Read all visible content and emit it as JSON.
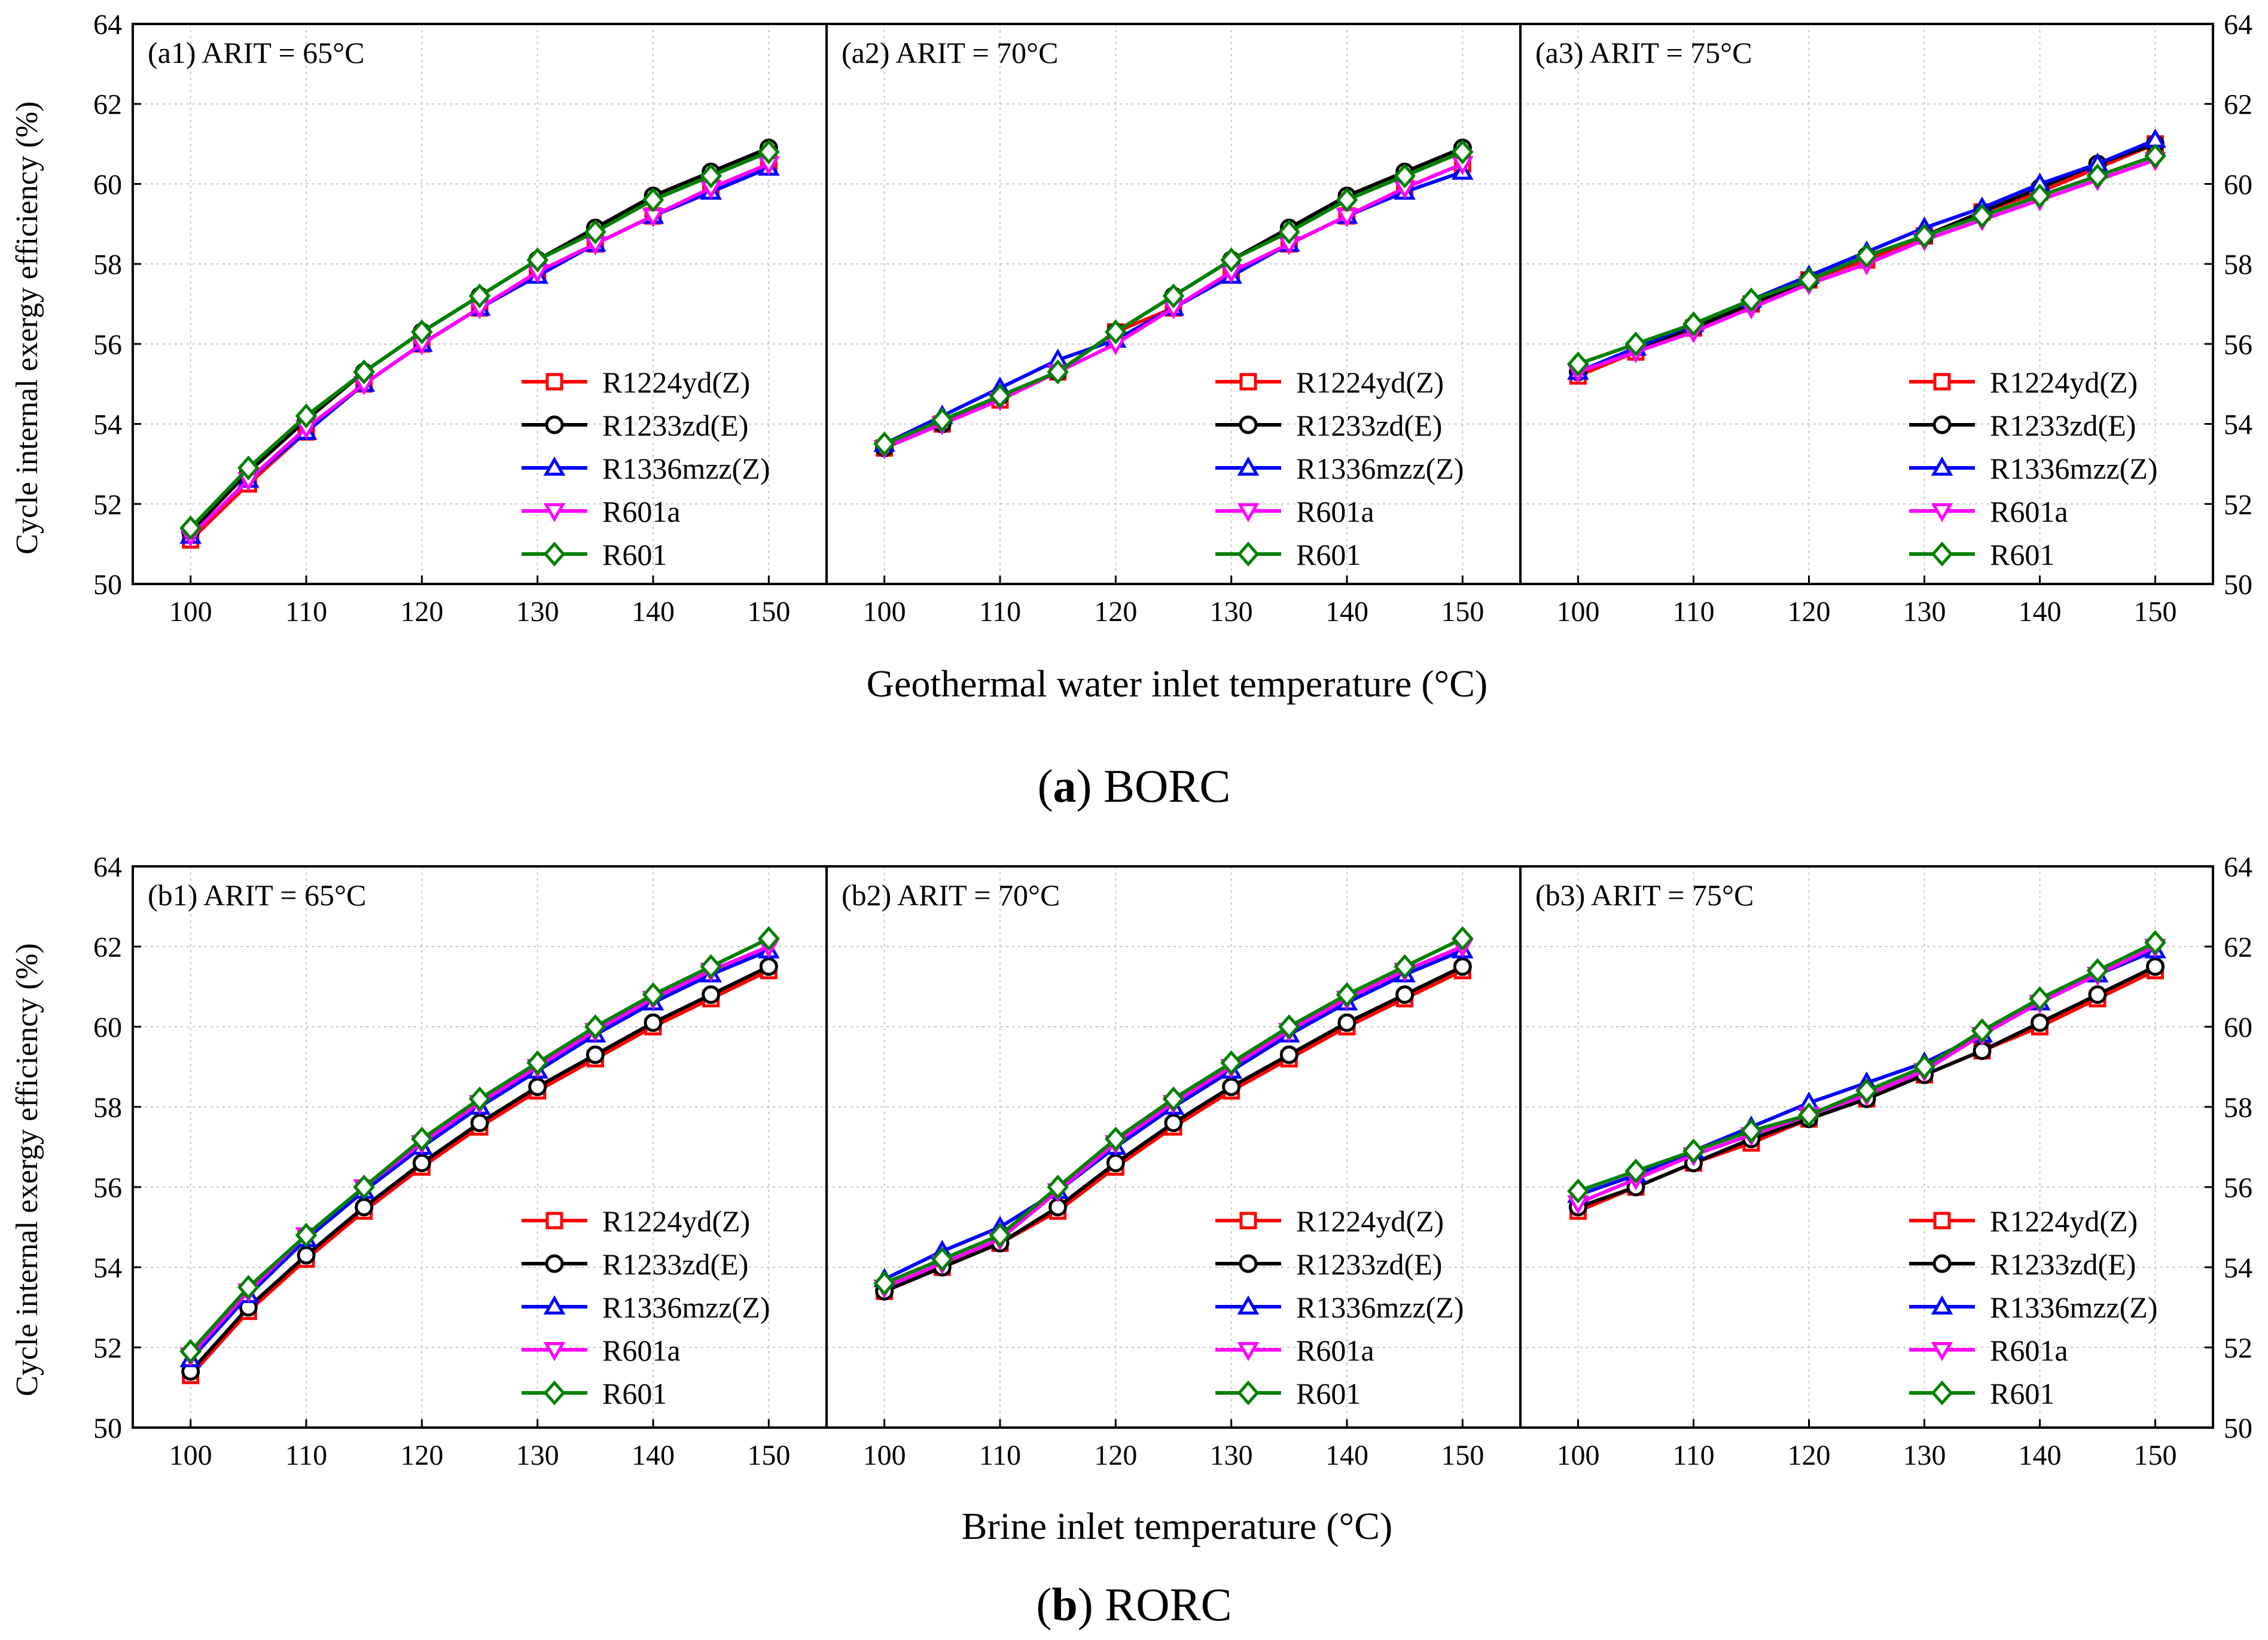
{
  "y_axis_label": "Cycle internal exergy efficiency (%)",
  "series_style": [
    {
      "name": "R1224yd(Z)",
      "color": "#ff0000",
      "marker": "square"
    },
    {
      "name": "R1233zd(E)",
      "color": "#000000",
      "marker": "circle"
    },
    {
      "name": "R1336mzz(Z)",
      "color": "#0000ff",
      "marker": "triangle-up"
    },
    {
      "name": "R601a",
      "color": "#ff00ff",
      "marker": "triangle-down"
    },
    {
      "name": "R601",
      "color": "#008000",
      "marker": "diamond"
    }
  ],
  "rows": [
    {
      "xlabel": "Geothermal water inlet temperature (°C)",
      "caption_letter": "a",
      "caption_rest": " BORC"
    },
    {
      "xlabel": "Brine inlet temperature (°C)",
      "caption_letter": "b",
      "caption_rest": " RORC"
    }
  ],
  "chart_data": [
    {
      "type": "line",
      "title": "(a1) ARIT = 65°C",
      "xlabel": "Geothermal water inlet temperature (°C)",
      "ylabel": "Cycle internal exergy efficiency (%)",
      "xlim": [
        95,
        155
      ],
      "ylim": [
        50,
        64
      ],
      "xticks": [
        100,
        110,
        120,
        130,
        140,
        150
      ],
      "yticks": [
        50,
        52,
        54,
        56,
        58,
        60,
        62,
        64
      ],
      "x": [
        100,
        105,
        110,
        115,
        120,
        125,
        130,
        135,
        140,
        145,
        150
      ],
      "series": [
        {
          "name": "R1224yd(Z)",
          "values": [
            51.1,
            52.5,
            53.8,
            55.0,
            56.0,
            56.9,
            57.8,
            58.5,
            59.2,
            59.9,
            60.5
          ]
        },
        {
          "name": "R1233zd(E)",
          "values": [
            51.3,
            52.8,
            54.1,
            55.3,
            56.3,
            57.2,
            58.1,
            58.9,
            59.7,
            60.3,
            60.9
          ]
        },
        {
          "name": "R1336mzz(Z)",
          "values": [
            51.2,
            52.6,
            53.8,
            55.0,
            56.0,
            56.9,
            57.7,
            58.5,
            59.2,
            59.8,
            60.4
          ]
        },
        {
          "name": "R601a",
          "values": [
            51.2,
            52.6,
            53.9,
            55.0,
            56.0,
            56.9,
            57.8,
            58.5,
            59.2,
            59.9,
            60.5
          ]
        },
        {
          "name": "R601",
          "values": [
            51.4,
            52.9,
            54.2,
            55.3,
            56.3,
            57.2,
            58.1,
            58.8,
            59.6,
            60.2,
            60.8
          ]
        }
      ]
    },
    {
      "type": "line",
      "title": "(a2) ARIT =  70°C",
      "xlabel": "Geothermal water inlet temperature (°C)",
      "ylabel": "",
      "xlim": [
        95,
        155
      ],
      "ylim": [
        50,
        64
      ],
      "xticks": [
        100,
        110,
        120,
        130,
        140,
        150
      ],
      "yticks": [
        50,
        52,
        54,
        56,
        58,
        60,
        62,
        64
      ],
      "x": [
        100,
        105,
        110,
        115,
        120,
        125,
        130,
        135,
        140,
        145,
        150
      ],
      "series": [
        {
          "name": "R1224yd(Z)",
          "values": [
            53.4,
            54.0,
            54.6,
            55.3,
            56.3,
            56.9,
            57.8,
            58.5,
            59.2,
            59.9,
            60.5
          ]
        },
        {
          "name": "R1233zd(E)",
          "values": [
            53.4,
            54.0,
            54.7,
            55.3,
            56.3,
            57.2,
            58.1,
            58.9,
            59.7,
            60.3,
            60.9
          ]
        },
        {
          "name": "R1336mzz(Z)",
          "values": [
            53.5,
            54.2,
            54.9,
            55.6,
            56.1,
            56.9,
            57.7,
            58.5,
            59.2,
            59.8,
            60.3
          ]
        },
        {
          "name": "R601a",
          "values": [
            53.4,
            54.0,
            54.6,
            55.3,
            56.0,
            56.9,
            57.8,
            58.5,
            59.2,
            59.9,
            60.5
          ]
        },
        {
          "name": "R601",
          "values": [
            53.5,
            54.1,
            54.7,
            55.3,
            56.3,
            57.2,
            58.1,
            58.8,
            59.6,
            60.2,
            60.8
          ]
        }
      ]
    },
    {
      "type": "line",
      "title": "(a3) ARIT =  75°C",
      "xlabel": "Geothermal water inlet temperature (°C)",
      "ylabel": "",
      "xlim": [
        95,
        155
      ],
      "ylim": [
        50,
        64
      ],
      "xticks": [
        100,
        110,
        120,
        130,
        140,
        150
      ],
      "yticks": [
        50,
        52,
        54,
        56,
        58,
        60,
        62,
        64
      ],
      "x": [
        100,
        105,
        110,
        115,
        120,
        125,
        130,
        135,
        140,
        145,
        150
      ],
      "series": [
        {
          "name": "R1224yd(Z)",
          "values": [
            55.2,
            55.8,
            56.4,
            57.0,
            57.6,
            58.1,
            58.7,
            59.3,
            59.8,
            60.4,
            61.0
          ]
        },
        {
          "name": "R1233zd(E)",
          "values": [
            55.3,
            55.9,
            56.4,
            57.0,
            57.6,
            58.2,
            58.7,
            59.3,
            59.9,
            60.5,
            61.0
          ]
        },
        {
          "name": "R1336mzz(Z)",
          "values": [
            55.3,
            55.9,
            56.5,
            57.1,
            57.7,
            58.3,
            58.9,
            59.4,
            60.0,
            60.5,
            61.1
          ]
        },
        {
          "name": "R601a",
          "values": [
            55.3,
            55.8,
            56.3,
            56.9,
            57.5,
            58.0,
            58.6,
            59.1,
            59.6,
            60.1,
            60.6
          ]
        },
        {
          "name": "R601",
          "values": [
            55.5,
            56.0,
            56.5,
            57.1,
            57.6,
            58.2,
            58.7,
            59.2,
            59.7,
            60.2,
            60.7
          ]
        }
      ]
    },
    {
      "type": "line",
      "title": "(b1) ARIT = 65°C",
      "xlabel": "Brine inlet temperature (°C)",
      "ylabel": "Cycle internal exergy efficiency (%)",
      "xlim": [
        95,
        155
      ],
      "ylim": [
        50,
        64
      ],
      "xticks": [
        100,
        110,
        120,
        130,
        140,
        150
      ],
      "yticks": [
        50,
        52,
        54,
        56,
        58,
        60,
        62,
        64
      ],
      "x": [
        100,
        105,
        110,
        115,
        120,
        125,
        130,
        135,
        140,
        145,
        150
      ],
      "series": [
        {
          "name": "R1224yd(Z)",
          "values": [
            51.3,
            52.9,
            54.2,
            55.4,
            56.5,
            57.5,
            58.4,
            59.2,
            60.0,
            60.7,
            61.4
          ]
        },
        {
          "name": "R1233zd(E)",
          "values": [
            51.4,
            53.0,
            54.3,
            55.5,
            56.6,
            57.6,
            58.5,
            59.3,
            60.1,
            60.8,
            61.5
          ]
        },
        {
          "name": "R1336mzz(Z)",
          "values": [
            51.7,
            53.3,
            54.7,
            55.9,
            57.0,
            58.0,
            58.9,
            59.8,
            60.6,
            61.3,
            61.9
          ]
        },
        {
          "name": "R601a",
          "values": [
            51.8,
            53.4,
            54.8,
            56.0,
            57.1,
            58.1,
            59.0,
            59.9,
            60.7,
            61.4,
            62.0
          ]
        },
        {
          "name": "R601",
          "values": [
            51.9,
            53.5,
            54.8,
            56.0,
            57.2,
            58.2,
            59.1,
            60.0,
            60.8,
            61.5,
            62.2
          ]
        }
      ]
    },
    {
      "type": "line",
      "title": "(b2) ARIT = 70°C",
      "xlabel": "Brine inlet temperature (°C)",
      "ylabel": "",
      "xlim": [
        95,
        155
      ],
      "ylim": [
        50,
        64
      ],
      "xticks": [
        100,
        110,
        120,
        130,
        140,
        150
      ],
      "yticks": [
        50,
        52,
        54,
        56,
        58,
        60,
        62,
        64
      ],
      "x": [
        100,
        105,
        110,
        115,
        120,
        125,
        130,
        135,
        140,
        145,
        150
      ],
      "series": [
        {
          "name": "R1224yd(Z)",
          "values": [
            53.4,
            54.0,
            54.6,
            55.4,
            56.5,
            57.5,
            58.4,
            59.2,
            60.0,
            60.7,
            61.4
          ]
        },
        {
          "name": "R1233zd(E)",
          "values": [
            53.4,
            54.0,
            54.6,
            55.5,
            56.6,
            57.6,
            58.5,
            59.3,
            60.1,
            60.8,
            61.5
          ]
        },
        {
          "name": "R1336mzz(Z)",
          "values": [
            53.7,
            54.4,
            55.0,
            55.9,
            57.0,
            58.0,
            58.9,
            59.8,
            60.6,
            61.3,
            61.9
          ]
        },
        {
          "name": "R601a",
          "values": [
            53.5,
            54.1,
            54.7,
            55.9,
            57.1,
            58.1,
            59.0,
            59.9,
            60.7,
            61.4,
            62.0
          ]
        },
        {
          "name": "R601",
          "values": [
            53.6,
            54.2,
            54.8,
            56.0,
            57.2,
            58.2,
            59.1,
            60.0,
            60.8,
            61.5,
            62.2
          ]
        }
      ]
    },
    {
      "type": "line",
      "title": "(b3) ARIT = 75°C",
      "xlabel": "Brine inlet temperature (°C)",
      "ylabel": "",
      "xlim": [
        95,
        155
      ],
      "ylim": [
        50,
        64
      ],
      "xticks": [
        100,
        110,
        120,
        130,
        140,
        150
      ],
      "yticks": [
        50,
        52,
        54,
        56,
        58,
        60,
        62,
        64
      ],
      "x": [
        100,
        105,
        110,
        115,
        120,
        125,
        130,
        135,
        140,
        145,
        150
      ],
      "series": [
        {
          "name": "R1224yd(Z)",
          "values": [
            55.4,
            56.0,
            56.6,
            57.1,
            57.7,
            58.2,
            58.8,
            59.4,
            60.0,
            60.7,
            61.4
          ]
        },
        {
          "name": "R1233zd(E)",
          "values": [
            55.5,
            56.0,
            56.6,
            57.2,
            57.7,
            58.2,
            58.8,
            59.4,
            60.1,
            60.8,
            61.5
          ]
        },
        {
          "name": "R1336mzz(Z)",
          "values": [
            55.8,
            56.3,
            56.9,
            57.5,
            58.1,
            58.6,
            59.1,
            59.8,
            60.6,
            61.3,
            61.9
          ]
        },
        {
          "name": "R601a",
          "values": [
            55.6,
            56.2,
            56.8,
            57.3,
            57.8,
            58.3,
            58.9,
            59.8,
            60.6,
            61.3,
            62.0
          ]
        },
        {
          "name": "R601",
          "values": [
            55.9,
            56.4,
            56.9,
            57.4,
            57.8,
            58.4,
            59.0,
            59.9,
            60.7,
            61.4,
            62.1
          ]
        }
      ]
    }
  ]
}
